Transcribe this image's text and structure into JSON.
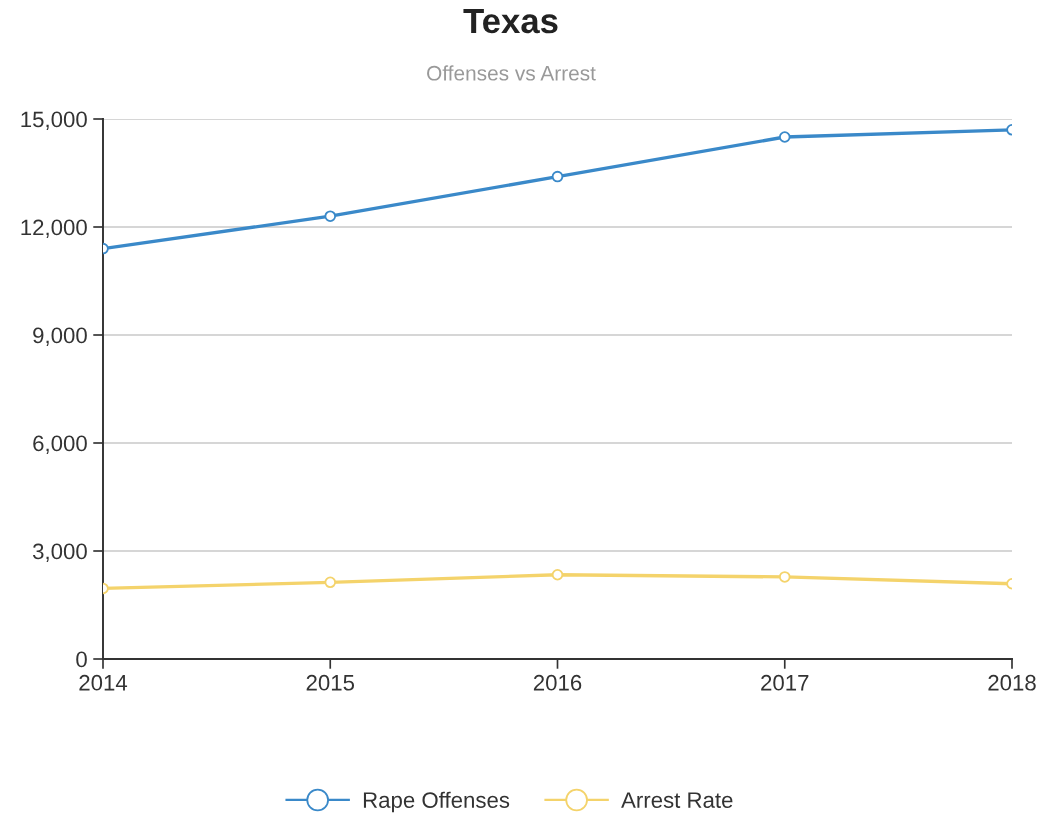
{
  "chart_data": {
    "type": "line",
    "title": "Texas",
    "subtitle": "Offenses vs Arrest",
    "x": [
      2014,
      2015,
      2016,
      2017,
      2018
    ],
    "xlim": [
      2014,
      2018
    ],
    "xticks": [
      2014,
      2015,
      2016,
      2017,
      2018
    ],
    "ylim": [
      0,
      15000
    ],
    "yticks": [
      0,
      {
        "value": 3000,
        "label": "3,000"
      },
      {
        "value": 6000,
        "label": "6,000"
      },
      {
        "value": 9000,
        "label": "9,000"
      },
      {
        "value": 12000,
        "label": "12,000"
      },
      {
        "value": 15000,
        "label": "15,000"
      }
    ],
    "series": [
      {
        "name": "Rape Offenses",
        "color": "#3a89c9",
        "values": [
          11400,
          12300,
          13400,
          14500,
          14700
        ]
      },
      {
        "name": "Arrest Rate",
        "color": "#f4d36b",
        "values": [
          1960,
          2130,
          2340,
          2280,
          2090
        ]
      }
    ],
    "grid": "y",
    "legend": "bottom",
    "marker": "circle",
    "line_style": "solid"
  }
}
